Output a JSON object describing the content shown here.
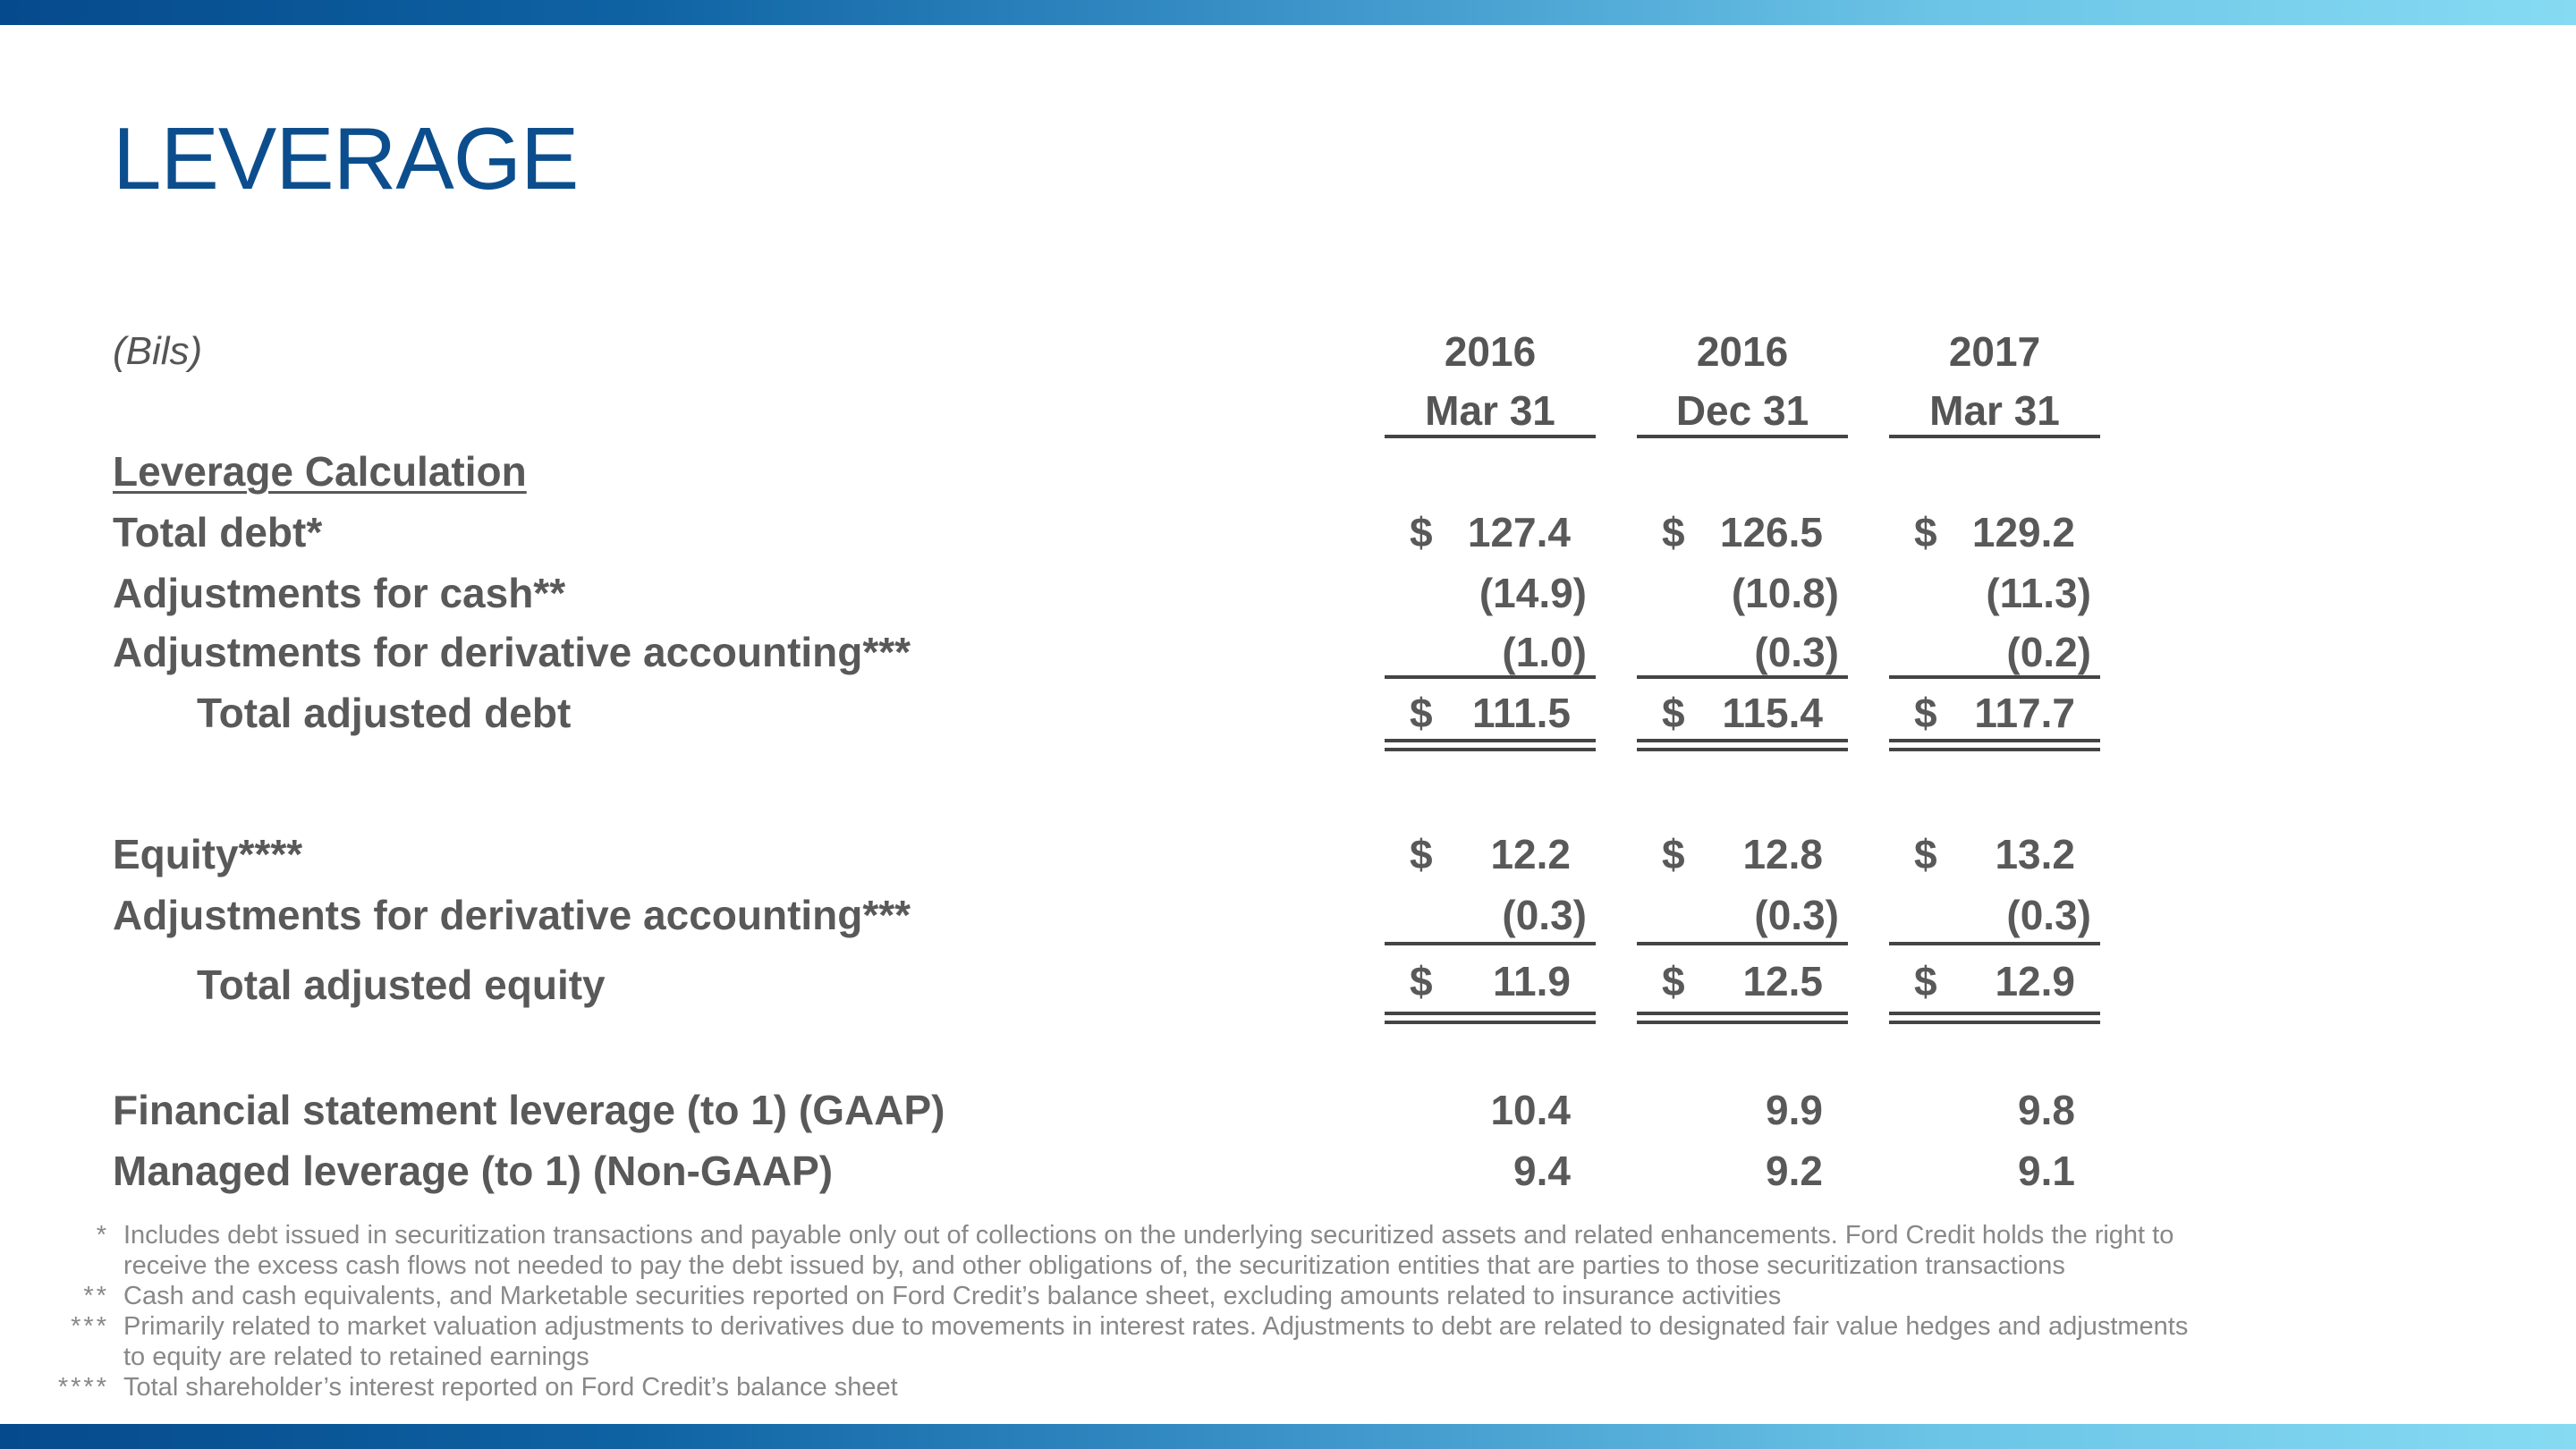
{
  "title": "LEVERAGE",
  "units": "(Bils)",
  "columns": [
    {
      "year": "2016",
      "date": "Mar 31"
    },
    {
      "year": "2016",
      "date": "Dec 31"
    },
    {
      "year": "2017",
      "date": "Mar 31"
    }
  ],
  "section_heading": "Leverage Calculation",
  "rows": {
    "total_debt": {
      "label": "Total debt*",
      "values": [
        "127.4",
        "126.5",
        "129.2"
      ],
      "dollar": "$"
    },
    "adj_cash": {
      "label": "Adjustments for cash**",
      "values": [
        "(14.9)",
        "(10.8)",
        "(11.3)"
      ]
    },
    "adj_deriv_debt": {
      "label": "Adjustments for derivative accounting***",
      "values": [
        "(1.0)",
        "(0.3)",
        "(0.2)"
      ]
    },
    "total_adj_debt": {
      "label": "Total adjusted debt",
      "values": [
        "111.5",
        "115.4",
        "117.7"
      ],
      "dollar": "$"
    },
    "equity": {
      "label": "Equity****",
      "values": [
        "12.2",
        "12.8",
        "13.2"
      ],
      "dollar": "$"
    },
    "adj_deriv_equity": {
      "label": "Adjustments for derivative accounting***",
      "values": [
        "(0.3)",
        "(0.3)",
        "(0.3)"
      ]
    },
    "total_adj_equity": {
      "label": "Total adjusted equity",
      "values": [
        "11.9",
        "12.5",
        "12.9"
      ],
      "dollar": "$"
    },
    "fs_leverage": {
      "label": "Financial statement leverage (to 1) (GAAP)",
      "values": [
        "10.4",
        "9.9",
        "9.8"
      ]
    },
    "managed_leverage": {
      "label": "Managed leverage (to 1) (Non-GAAP)",
      "values": [
        "9.4",
        "9.2",
        "9.1"
      ]
    }
  },
  "footnotes": [
    {
      "mark": "*",
      "lines": [
        "Includes debt issued in securitization transactions and payable only out of collections on the underlying securitized assets and related enhancements.  Ford Credit holds the right to",
        "receive the excess cash flows not needed to pay the debt issued by, and other obligations of, the securitization entities that are parties to those securitization transactions"
      ]
    },
    {
      "mark": "**",
      "lines": [
        "Cash and cash equivalents, and Marketable securities reported on Ford Credit’s balance sheet, excluding amounts related to insurance activities"
      ]
    },
    {
      "mark": "***",
      "lines": [
        "Primarily related to market valuation adjustments to derivatives due to movements in interest rates.  Adjustments to debt are related to designated fair value hedges and adjustments",
        "to equity are related to retained earnings"
      ]
    },
    {
      "mark": "****",
      "lines": [
        "Total shareholder’s interest reported on Ford Credit’s balance sheet"
      ]
    }
  ]
}
